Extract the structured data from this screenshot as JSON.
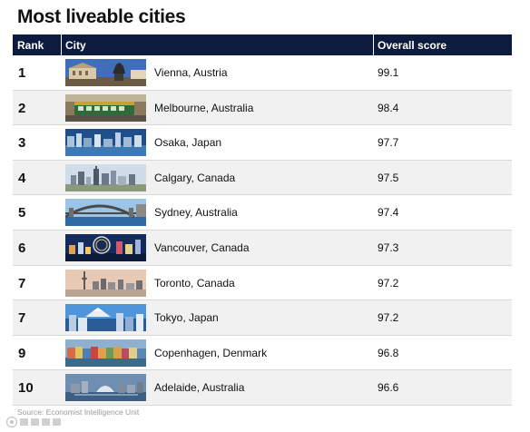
{
  "title": "Most liveable cities",
  "columns": {
    "rank": "Rank",
    "city": "City",
    "score": "Overall score"
  },
  "source": "Source: Economist Intelligence Unit",
  "colors": {
    "header_bg": "#0d1b3e",
    "alt_row": "#f1f1f1"
  },
  "chart_data": {
    "type": "table",
    "title": "Most liveable cities",
    "columns": [
      "Rank",
      "City",
      "Overall score"
    ],
    "rows": [
      {
        "rank": "1",
        "city": "Vienna, Austria",
        "score": "99.1",
        "photo": "vienna-photo"
      },
      {
        "rank": "2",
        "city": "Melbourne, Australia",
        "score": "98.4",
        "photo": "melbourne-photo"
      },
      {
        "rank": "3",
        "city": "Osaka, Japan",
        "score": "97.7",
        "photo": "osaka-photo"
      },
      {
        "rank": "4",
        "city": "Calgary, Canada",
        "score": "97.5",
        "photo": "calgary-photo"
      },
      {
        "rank": "5",
        "city": "Sydney, Australia",
        "score": "97.4",
        "photo": "sydney-photo"
      },
      {
        "rank": "6",
        "city": "Vancouver, Canada",
        "score": "97.3",
        "photo": "vancouver-photo"
      },
      {
        "rank": "7",
        "city": "Toronto, Canada",
        "score": "97.2",
        "photo": "toronto-photo"
      },
      {
        "rank": "7",
        "city": "Tokyo, Japan",
        "score": "97.2",
        "photo": "tokyo-photo"
      },
      {
        "rank": "9",
        "city": "Copenhagen, Denmark",
        "score": "96.8",
        "photo": "copenhagen-photo"
      },
      {
        "rank": "10",
        "city": "Adelaide, Australia",
        "score": "96.6",
        "photo": "adelaide-photo"
      }
    ]
  }
}
